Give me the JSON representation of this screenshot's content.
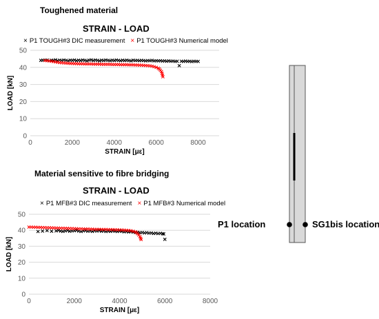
{
  "top": {
    "heading": "Toughened material",
    "chart_data": {
      "type": "scatter",
      "title": "STRAIN - LOAD",
      "xlabel": "STRAIN [με]",
      "ylabel": "LOAD [kN]",
      "xlim": [
        0,
        9000
      ],
      "ylim": [
        0,
        50
      ],
      "xticks": [
        "0",
        "2000",
        "4000",
        "6000",
        "8000"
      ],
      "yticks": [
        "0",
        "10",
        "20",
        "30",
        "40",
        "50"
      ],
      "grid": true,
      "legend_position": "top",
      "series": [
        {
          "name": "P1 TOUGH#3 DIC measurement",
          "color": "#000000",
          "marker": "x",
          "points": [
            [
              500,
              44.1
            ],
            [
              600,
              44.2
            ],
            [
              700,
              44.3
            ],
            [
              800,
              44.3
            ],
            [
              900,
              43.8
            ],
            [
              1000,
              44.2
            ],
            [
              1100,
              44.1
            ],
            [
              1200,
              44.4
            ],
            [
              1300,
              43.9
            ],
            [
              1400,
              44.2
            ],
            [
              1500,
              44.0
            ],
            [
              1600,
              44.3
            ],
            [
              1700,
              44.1
            ],
            [
              1800,
              43.8
            ],
            [
              1900,
              44.2
            ],
            [
              2000,
              44.1
            ],
            [
              2100,
              44.3
            ],
            [
              2200,
              43.9
            ],
            [
              2300,
              44.2
            ],
            [
              2400,
              44.0
            ],
            [
              2500,
              44.3
            ],
            [
              2600,
              44.1
            ],
            [
              2700,
              43.8
            ],
            [
              2800,
              44.2
            ],
            [
              2900,
              44.4
            ],
            [
              3000,
              44.0
            ],
            [
              3100,
              44.3
            ],
            [
              3200,
              44.1
            ],
            [
              3300,
              43.8
            ],
            [
              3400,
              44.2
            ],
            [
              3500,
              44.0
            ],
            [
              3600,
              44.3
            ],
            [
              3700,
              44.1
            ],
            [
              3800,
              43.9
            ],
            [
              3900,
              44.2
            ],
            [
              4000,
              44.0
            ],
            [
              4100,
              44.3
            ],
            [
              4200,
              44.1
            ],
            [
              4300,
              43.9
            ],
            [
              4400,
              44.2
            ],
            [
              4500,
              44.0
            ],
            [
              4600,
              44.2
            ],
            [
              4700,
              44.0
            ],
            [
              4800,
              43.8
            ],
            [
              4900,
              44.2
            ],
            [
              5000,
              44.0
            ],
            [
              5100,
              44.1
            ],
            [
              5200,
              43.9
            ],
            [
              5300,
              44.1
            ],
            [
              5400,
              44.0
            ],
            [
              5500,
              43.8
            ],
            [
              5600,
              44.0
            ],
            [
              5700,
              43.9
            ],
            [
              5800,
              44.1
            ],
            [
              5900,
              43.8
            ],
            [
              6000,
              43.9
            ],
            [
              6100,
              43.8
            ],
            [
              6200,
              43.9
            ],
            [
              6300,
              43.7
            ],
            [
              6400,
              43.8
            ],
            [
              6500,
              43.6
            ],
            [
              6600,
              43.8
            ],
            [
              6700,
              43.6
            ],
            [
              6800,
              43.7
            ],
            [
              6900,
              43.5
            ],
            [
              7000,
              43.6
            ],
            [
              7100,
              41.0
            ],
            [
              7200,
              43.6
            ],
            [
              7300,
              43.5
            ],
            [
              7400,
              43.7
            ],
            [
              7500,
              43.5
            ],
            [
              7600,
              43.6
            ],
            [
              7700,
              43.4
            ],
            [
              7800,
              43.6
            ],
            [
              7900,
              43.5
            ],
            [
              8000,
              43.5
            ]
          ]
        },
        {
          "name": "P1 TOUGH#3 Numerical model",
          "color": "#ff0000",
          "marker": "x",
          "points": [
            [
              700,
              44.0
            ],
            [
              800,
              43.9
            ],
            [
              900,
              43.8
            ],
            [
              1000,
              43.6
            ],
            [
              1100,
              43.4
            ],
            [
              1200,
              43.2
            ],
            [
              1300,
              43.0
            ],
            [
              1400,
              42.8
            ],
            [
              1500,
              42.7
            ],
            [
              1600,
              42.6
            ],
            [
              1700,
              42.5
            ],
            [
              1800,
              42.4
            ],
            [
              1900,
              42.3
            ],
            [
              2000,
              42.3
            ],
            [
              2100,
              42.2
            ],
            [
              2200,
              42.2
            ],
            [
              2300,
              42.1
            ],
            [
              2400,
              42.1
            ],
            [
              2500,
              42.1
            ],
            [
              2600,
              42.0
            ],
            [
              2700,
              42.0
            ],
            [
              2800,
              42.0
            ],
            [
              2900,
              42.0
            ],
            [
              3000,
              41.9
            ],
            [
              3100,
              41.9
            ],
            [
              3200,
              41.9
            ],
            [
              3300,
              41.9
            ],
            [
              3400,
              41.8
            ],
            [
              3500,
              41.8
            ],
            [
              3600,
              41.8
            ],
            [
              3700,
              41.8
            ],
            [
              3800,
              41.8
            ],
            [
              3900,
              41.7
            ],
            [
              4000,
              41.7
            ],
            [
              4100,
              41.7
            ],
            [
              4200,
              41.7
            ],
            [
              4300,
              41.6
            ],
            [
              4400,
              41.6
            ],
            [
              4500,
              41.6
            ],
            [
              4600,
              41.6
            ],
            [
              4700,
              41.5
            ],
            [
              4800,
              41.5
            ],
            [
              4900,
              41.5
            ],
            [
              5000,
              41.4
            ],
            [
              5100,
              41.4
            ],
            [
              5200,
              41.3
            ],
            [
              5300,
              41.3
            ],
            [
              5400,
              41.2
            ],
            [
              5500,
              41.1
            ],
            [
              5600,
              41.0
            ],
            [
              5700,
              40.9
            ],
            [
              5800,
              40.7
            ],
            [
              5900,
              40.4
            ],
            [
              6000,
              40.0
            ],
            [
              6100,
              39.5
            ],
            [
              6150,
              39.0
            ],
            [
              6200,
              38.3
            ],
            [
              6250,
              37.5
            ],
            [
              6280,
              36.5
            ],
            [
              6300,
              35.5
            ],
            [
              6320,
              34.5
            ]
          ]
        }
      ]
    }
  },
  "bottom": {
    "heading": "Material sensitive to fibre bridging",
    "chart_data": {
      "type": "scatter",
      "title": "STRAIN - LOAD",
      "xlabel": "STRAIN [με]",
      "ylabel": "LOAD [kN]",
      "xlim": [
        0,
        8000
      ],
      "ylim": [
        0,
        50
      ],
      "xticks": [
        "0",
        "2000",
        "4000",
        "6000",
        "8000"
      ],
      "yticks": [
        "0",
        "10",
        "20",
        "30",
        "40",
        "50"
      ],
      "grid": true,
      "legend_position": "top",
      "series": [
        {
          "name": "P1 MFB#3 DIC measurement",
          "color": "#000000",
          "marker": "x",
          "points": [
            [
              400,
              39.2
            ],
            [
              600,
              39.5
            ],
            [
              800,
              39.8
            ],
            [
              1000,
              39.4
            ],
            [
              1200,
              39.6
            ],
            [
              1300,
              40.0
            ],
            [
              1400,
              39.5
            ],
            [
              1500,
              39.3
            ],
            [
              1600,
              39.6
            ],
            [
              1700,
              39.9
            ],
            [
              1800,
              39.4
            ],
            [
              1900,
              39.6
            ],
            [
              2000,
              39.7
            ],
            [
              2100,
              40.0
            ],
            [
              2200,
              39.5
            ],
            [
              2300,
              39.2
            ],
            [
              2400,
              39.6
            ],
            [
              2500,
              39.8
            ],
            [
              2600,
              39.4
            ],
            [
              2700,
              39.6
            ],
            [
              2800,
              39.3
            ],
            [
              2900,
              39.7
            ],
            [
              3000,
              39.5
            ],
            [
              3100,
              39.8
            ],
            [
              3200,
              39.4
            ],
            [
              3300,
              39.6
            ],
            [
              3400,
              39.2
            ],
            [
              3500,
              39.5
            ],
            [
              3600,
              39.3
            ],
            [
              3700,
              39.6
            ],
            [
              3800,
              39.4
            ],
            [
              3900,
              39.2
            ],
            [
              4000,
              39.5
            ],
            [
              4100,
              39.3
            ],
            [
              4200,
              39.0
            ],
            [
              4300,
              39.2
            ],
            [
              4400,
              38.9
            ],
            [
              4500,
              39.1
            ],
            [
              4600,
              38.8
            ],
            [
              4700,
              38.6
            ],
            [
              4800,
              38.7
            ],
            [
              4900,
              38.5
            ],
            [
              5000,
              38.6
            ],
            [
              5100,
              38.3
            ],
            [
              5200,
              38.5
            ],
            [
              5300,
              38.2
            ],
            [
              5400,
              38.3
            ],
            [
              5500,
              38.0
            ],
            [
              5600,
              38.2
            ],
            [
              5700,
              37.9
            ],
            [
              5800,
              38.1
            ],
            [
              5900,
              37.8
            ],
            [
              5950,
              37.7
            ],
            [
              6000,
              34.3
            ]
          ]
        },
        {
          "name": "P1 MFB#3 Numerical model",
          "color": "#ff0000",
          "marker": "x",
          "points": [
            [
              0,
              42.0
            ],
            [
              100,
              42.0
            ],
            [
              200,
              41.9
            ],
            [
              300,
              41.9
            ],
            [
              400,
              41.8
            ],
            [
              500,
              41.8
            ],
            [
              600,
              41.7
            ],
            [
              700,
              41.7
            ],
            [
              800,
              41.6
            ],
            [
              900,
              41.6
            ],
            [
              1000,
              41.5
            ],
            [
              1100,
              41.5
            ],
            [
              1200,
              41.4
            ],
            [
              1300,
              41.4
            ],
            [
              1400,
              41.3
            ],
            [
              1500,
              41.3
            ],
            [
              1600,
              41.2
            ],
            [
              1700,
              41.2
            ],
            [
              1800,
              41.1
            ],
            [
              1900,
              41.1
            ],
            [
              2000,
              41.0
            ],
            [
              2100,
              41.0
            ],
            [
              2200,
              40.9
            ],
            [
              2300,
              40.9
            ],
            [
              2400,
              40.8
            ],
            [
              2500,
              40.8
            ],
            [
              2600,
              40.8
            ],
            [
              2700,
              40.7
            ],
            [
              2800,
              40.7
            ],
            [
              2900,
              40.6
            ],
            [
              3000,
              40.6
            ],
            [
              3100,
              40.6
            ],
            [
              3200,
              40.5
            ],
            [
              3300,
              40.5
            ],
            [
              3400,
              40.5
            ],
            [
              3500,
              40.4
            ],
            [
              3600,
              40.4
            ],
            [
              3700,
              40.4
            ],
            [
              3800,
              40.3
            ],
            [
              3900,
              40.3
            ],
            [
              4000,
              40.2
            ],
            [
              4100,
              40.2
            ],
            [
              4200,
              40.1
            ],
            [
              4300,
              40.0
            ],
            [
              4400,
              39.9
            ],
            [
              4500,
              39.7
            ],
            [
              4600,
              39.4
            ],
            [
              4700,
              39.0
            ],
            [
              4750,
              38.5
            ],
            [
              4800,
              37.8
            ],
            [
              4850,
              37.0
            ],
            [
              4900,
              36.0
            ],
            [
              4930,
              35.0
            ],
            [
              4950,
              34.2
            ]
          ]
        }
      ]
    }
  },
  "diagram": {
    "left_label": "P1 location",
    "right_label": "SG1bis location"
  }
}
